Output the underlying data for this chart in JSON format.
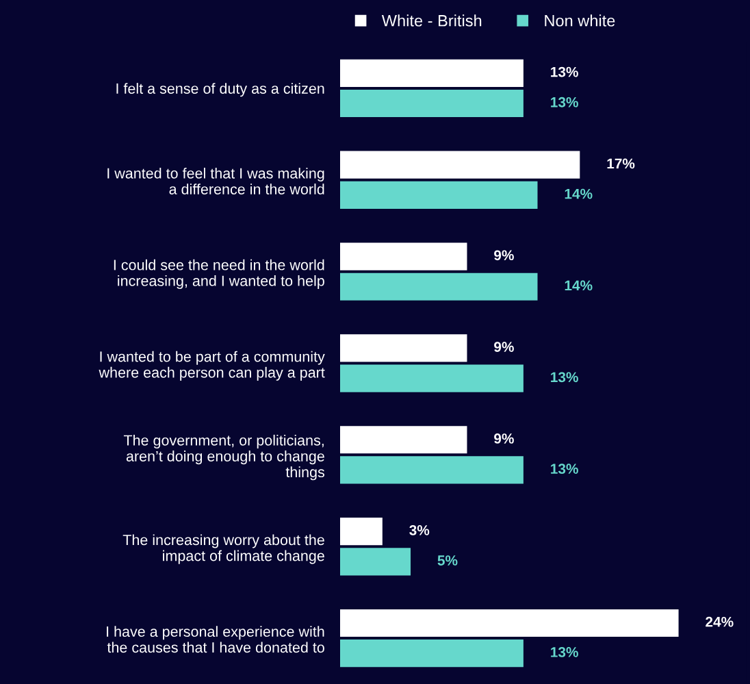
{
  "chart_data": {
    "type": "bar",
    "orientation": "horizontal",
    "legend": "top",
    "grid": false,
    "categories": [
      "I felt a sense of duty as a citizen",
      "I wanted to feel that I was making\na difference in the world",
      "I could see the need in the world\nincreasing, and I wanted to help",
      "I wanted to be part of a community\nwhere each person can play a part",
      "The government, or politicians,\naren’t doing enough to change\nthings",
      "The increasing worry about the\nimpact of climate change",
      "I have a personal experience with\nthe causes that I have donated to"
    ],
    "series": [
      {
        "name": "White - British",
        "color": "#ffffff",
        "values": [
          13,
          17,
          9,
          9,
          9,
          3,
          24
        ],
        "value_labels": [
          "13%",
          "17%",
          "9%",
          "9%",
          "9%",
          "3%",
          "24%"
        ]
      },
      {
        "name": "Non white",
        "color": "#66d8cc",
        "values": [
          13,
          14,
          14,
          13,
          13,
          5,
          13
        ],
        "value_labels": [
          "13%",
          "14%",
          "14%",
          "13%",
          "13%",
          "5%",
          "13%"
        ]
      }
    ]
  }
}
